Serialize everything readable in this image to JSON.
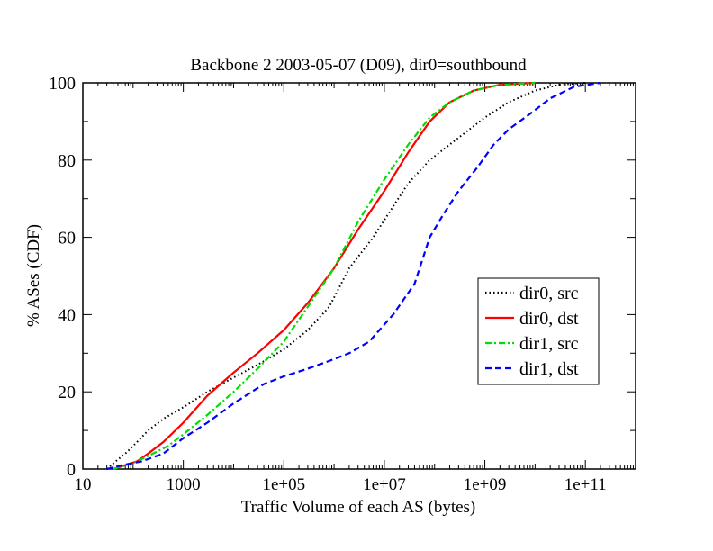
{
  "chart_data": {
    "type": "line",
    "title": "Backbone 2 2003-05-07 (D09), dir0=southbound",
    "xlabel": "Traffic Volume of each AS (bytes)",
    "ylabel": "% ASes (CDF)",
    "xscale": "log",
    "xlim": [
      10,
      1000000000000.0
    ],
    "ylim": [
      0,
      100
    ],
    "x_tick_labels": [
      "10",
      "1000",
      "1e+05",
      "1e+07",
      "1e+09",
      "1e+11"
    ],
    "y_tick_labels": [
      "0",
      "20",
      "40",
      "60",
      "80",
      "100"
    ],
    "grid": false,
    "legend_position": "center-right",
    "series": [
      {
        "name": "dir0, src",
        "color": "#000000",
        "dash": "dotted",
        "points": [
          [
            30,
            0
          ],
          [
            45,
            2
          ],
          [
            70,
            4
          ],
          [
            120,
            7
          ],
          [
            200,
            10
          ],
          [
            400,
            13
          ],
          [
            1000,
            16
          ],
          [
            3000,
            20
          ],
          [
            8000,
            23
          ],
          [
            30000,
            27
          ],
          [
            100000,
            31
          ],
          [
            300000,
            36
          ],
          [
            800000,
            42
          ],
          [
            2000000,
            52
          ],
          [
            6000000,
            60
          ],
          [
            15000000,
            68
          ],
          [
            30000000,
            74
          ],
          [
            80000000,
            80
          ],
          [
            200000000,
            84
          ],
          [
            500000000,
            88
          ],
          [
            1000000000,
            91
          ],
          [
            3000000000,
            95
          ],
          [
            10000000000,
            98
          ],
          [
            30000000000,
            99.5
          ],
          [
            100000000000,
            100
          ]
        ]
      },
      {
        "name": "dir0, dst",
        "color": "#ff0000",
        "dash": "solid",
        "points": [
          [
            40,
            0
          ],
          [
            70,
            1
          ],
          [
            120,
            2
          ],
          [
            200,
            4
          ],
          [
            400,
            7
          ],
          [
            1000,
            12
          ],
          [
            3000,
            19
          ],
          [
            10000,
            25
          ],
          [
            30000,
            30
          ],
          [
            100000,
            36
          ],
          [
            300000,
            43
          ],
          [
            1000000,
            52
          ],
          [
            3000000,
            62
          ],
          [
            10000000,
            72
          ],
          [
            30000000,
            82
          ],
          [
            80000000,
            90
          ],
          [
            200000000,
            95
          ],
          [
            600000000,
            98
          ],
          [
            2000000000,
            99.5
          ],
          [
            10000000000,
            100
          ]
        ]
      },
      {
        "name": "dir1, src",
        "color": "#00dd00",
        "dash": "dashdot",
        "points": [
          [
            40,
            0
          ],
          [
            70,
            1
          ],
          [
            120,
            2
          ],
          [
            250,
            4
          ],
          [
            500,
            6
          ],
          [
            1000,
            9
          ],
          [
            3000,
            14
          ],
          [
            10000,
            20
          ],
          [
            30000,
            26
          ],
          [
            100000,
            33
          ],
          [
            300000,
            42
          ],
          [
            1000000,
            52
          ],
          [
            3000000,
            64
          ],
          [
            10000000,
            75
          ],
          [
            30000000,
            84
          ],
          [
            80000000,
            91
          ],
          [
            200000000,
            95
          ],
          [
            600000000,
            98
          ],
          [
            2000000000,
            99.5
          ],
          [
            10000000000,
            100
          ]
        ]
      },
      {
        "name": "dir1, dst",
        "color": "#0000ff",
        "dash": "dashed",
        "points": [
          [
            30,
            0
          ],
          [
            60,
            1
          ],
          [
            150,
            2
          ],
          [
            400,
            4
          ],
          [
            1000,
            8
          ],
          [
            3000,
            12
          ],
          [
            10000,
            17
          ],
          [
            40000,
            22
          ],
          [
            100000,
            24
          ],
          [
            300000,
            26
          ],
          [
            800000,
            28
          ],
          [
            2000000,
            30
          ],
          [
            5000000,
            33
          ],
          [
            15000000,
            40
          ],
          [
            40000000,
            48
          ],
          [
            80000000,
            60
          ],
          [
            150000000,
            66
          ],
          [
            300000000,
            72
          ],
          [
            700000000,
            78
          ],
          [
            1500000000,
            84
          ],
          [
            3000000000,
            88
          ],
          [
            8000000000,
            92
          ],
          [
            20000000000,
            96
          ],
          [
            60000000000,
            99
          ],
          [
            200000000000,
            100
          ]
        ]
      }
    ]
  }
}
